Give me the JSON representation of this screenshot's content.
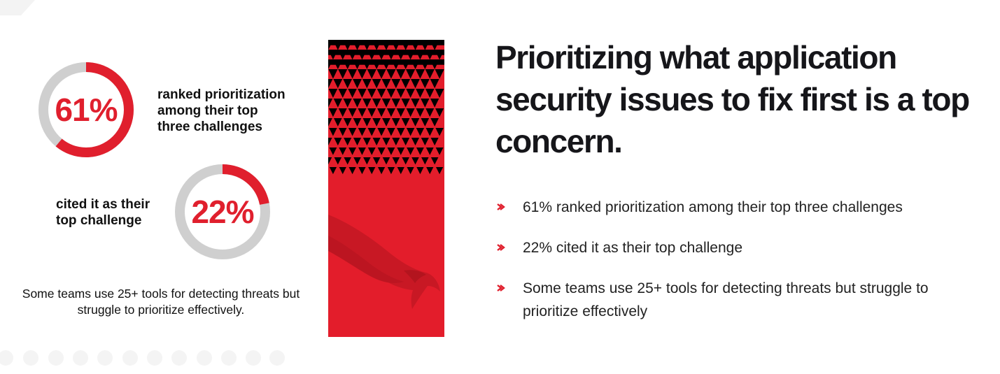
{
  "colors": {
    "accent": "#e01f2d",
    "ring_track": "#cfcfcf",
    "text": "#16161a",
    "panel_black": "#000000"
  },
  "stats": [
    {
      "percent_label": "61%",
      "percent_value": 61,
      "lines": [
        "ranked prioritization",
        "among their top",
        "three challenges"
      ]
    },
    {
      "percent_label": "22%",
      "percent_value": 22,
      "lines": [
        "cited it as their",
        "top challenge"
      ]
    }
  ],
  "note": "Some teams use 25+ tools for detecting threats but struggle to prioritize effectively.",
  "headline": "Prioritizing what application security issues to fix first is a top concern.",
  "bullets": [
    "61% ranked prioritization among their top three challenges",
    "22% cited it as their top challenge",
    "Some teams use 25+ tools for detecting threats but struggle to prioritize effectively"
  ],
  "icons": {
    "bullet": "arrow-right-icon",
    "panel_graphic": "falcon-icon"
  }
}
